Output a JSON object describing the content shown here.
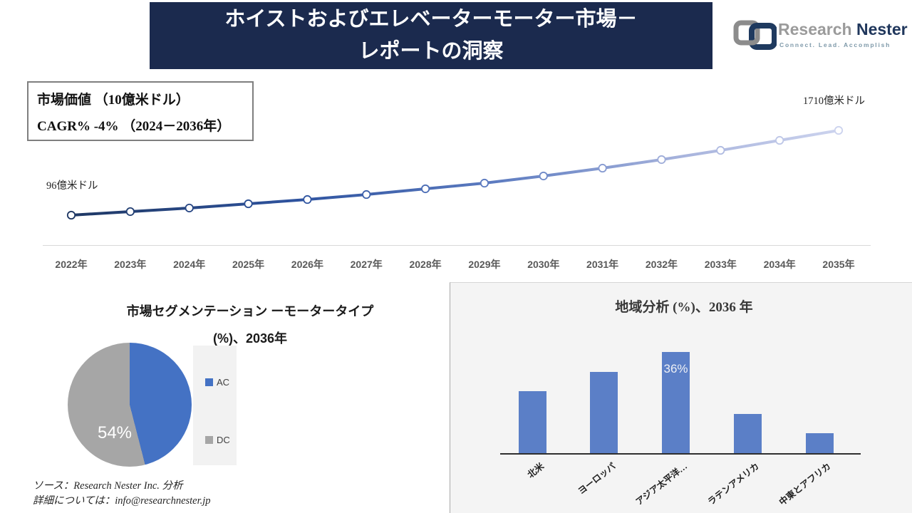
{
  "header": {
    "title_line1": "ホイストおよびエレベーターモーター市場－",
    "title_line2": "レポートの洞察"
  },
  "logo": {
    "brand_part1": "Research",
    "brand_part2": "Nester",
    "tagline": "Connect. Lead. Accomplish"
  },
  "info_box": {
    "line1": "市場価値 （10億米ドル）",
    "line2": "CAGR% -4% （2024－2036年）"
  },
  "chart_data": [
    {
      "type": "line",
      "title": "",
      "x": [
        "2022年",
        "2023年",
        "2024年",
        "2025年",
        "2026年",
        "2027年",
        "2028年",
        "2029年",
        "2030年",
        "2031年",
        "2032年",
        "2033年",
        "2034年",
        "2035年"
      ],
      "values": [
        96,
        164,
        232,
        313,
        394,
        489,
        598,
        706,
        842,
        991,
        1154,
        1330,
        1520,
        1710
      ],
      "unit": "億米ドル",
      "first_point_label": "96億米ドル",
      "last_point_label": "1710億米ドル",
      "ylim": [
        96,
        1710
      ],
      "grid": false,
      "marker": "circle-open",
      "line_gradient": [
        "#1f3864",
        "#2f54a0",
        "#5c7bc0",
        "#a8b4dd",
        "#ccd3ee"
      ]
    },
    {
      "type": "pie",
      "title_line1": "市場セグメンテーション ーモータータイプ",
      "title_line2": "(%)、2036年",
      "slices": [
        {
          "label": "AC",
          "value": 46,
          "color": "#4472c4"
        },
        {
          "label": "DC",
          "value": 54,
          "color": "#a6a6a6"
        }
      ],
      "data_label": "54%",
      "legend_position": "right"
    },
    {
      "type": "bar",
      "title": "地域分析 (%)、2036 年",
      "categories": [
        "北米",
        "ヨーロッパ",
        "アジア太平洋…",
        "ラテンアメリカ",
        "中東とアフリカ"
      ],
      "values": [
        22,
        29,
        36,
        14,
        7
      ],
      "bar_color": "#5b7fc7",
      "data_label": {
        "index": 2,
        "text": "36%"
      },
      "grid": false
    }
  ],
  "source": {
    "line1": "ソース：Research Nester Inc. 分析",
    "line2": "詳細については：info@researchnester.jp"
  },
  "colors": {
    "header_bg": "#1b2a4e",
    "pie_blue": "#4472c4",
    "pie_gray": "#a6a6a6",
    "bar_blue": "#5b7fc7",
    "panel_gray": "#f4f4f4",
    "legend_bg": "#f2f2f2",
    "axis_light": "#d9d9d9",
    "axis_dark": "#2f2f2f"
  }
}
